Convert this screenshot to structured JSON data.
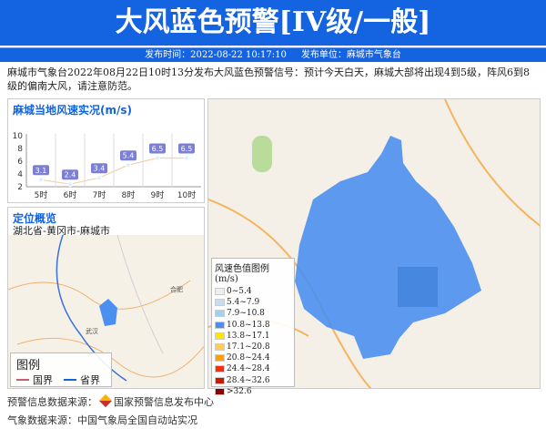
{
  "header": {
    "title": "大风蓝色预警[IV级/一般]",
    "publish_time": "发布时间：2022-08-22 10:17:10",
    "publisher": "发布单位：麻城市气象台"
  },
  "description": "麻城市气象台2022年08月22日10时13分发布大风蓝色预警信号：预计今天白天，麻城大部将出现4到5级，阵风6到8级的偏南大风，请注意防范。",
  "chart_panel": {
    "title": "麻城当地风速实况(m/s)"
  },
  "chart_data": {
    "type": "line",
    "title": "麻城当地风速实况(m/s)",
    "categories": [
      "5时",
      "6时",
      "7时",
      "8时",
      "9时",
      "10时"
    ],
    "values": [
      3.1,
      2.4,
      3.4,
      5.4,
      6.5,
      6.5
    ],
    "ylim": [
      2,
      10
    ],
    "yticks": [
      2,
      4,
      6,
      8,
      10
    ],
    "grid": "vertical",
    "line_color": "#f0d3b0",
    "label_color": "#7b7fd6"
  },
  "location_panel": {
    "title": "定位概览",
    "path": "湖北省-黄冈市-麻城市",
    "map_labels": {
      "wuhan": "武汉",
      "hefei": "合肥"
    },
    "legend": {
      "title": "图例",
      "national": "国界",
      "provincial": "省界"
    }
  },
  "map_legend": {
    "title": "风速色值图例 (m/s)",
    "items": [
      {
        "label": "0~5.4",
        "color": "#eeeeee"
      },
      {
        "label": "5.4~7.9",
        "color": "#c6def2"
      },
      {
        "label": "7.9~10.8",
        "color": "#9fd0f5"
      },
      {
        "label": "10.8~13.8",
        "color": "#4b8ff0"
      },
      {
        "label": "13.8~17.1",
        "color": "#ffe600"
      },
      {
        "label": "17.1~20.8",
        "color": "#ffcc55"
      },
      {
        "label": "20.8~24.4",
        "color": "#ff9f00"
      },
      {
        "label": "24.4~28.4",
        "color": "#ff2a0a"
      },
      {
        "label": "28.4~32.6",
        "color": "#c81a00"
      },
      {
        "label": ">32.6",
        "color": "#8c0000"
      }
    ]
  },
  "footer": {
    "warning_source": "预警信息数据来源：",
    "warning_source_name": "国家预警信息发布中心",
    "weather_source": "气象数据来源：中国气象局全国自动站实况"
  }
}
